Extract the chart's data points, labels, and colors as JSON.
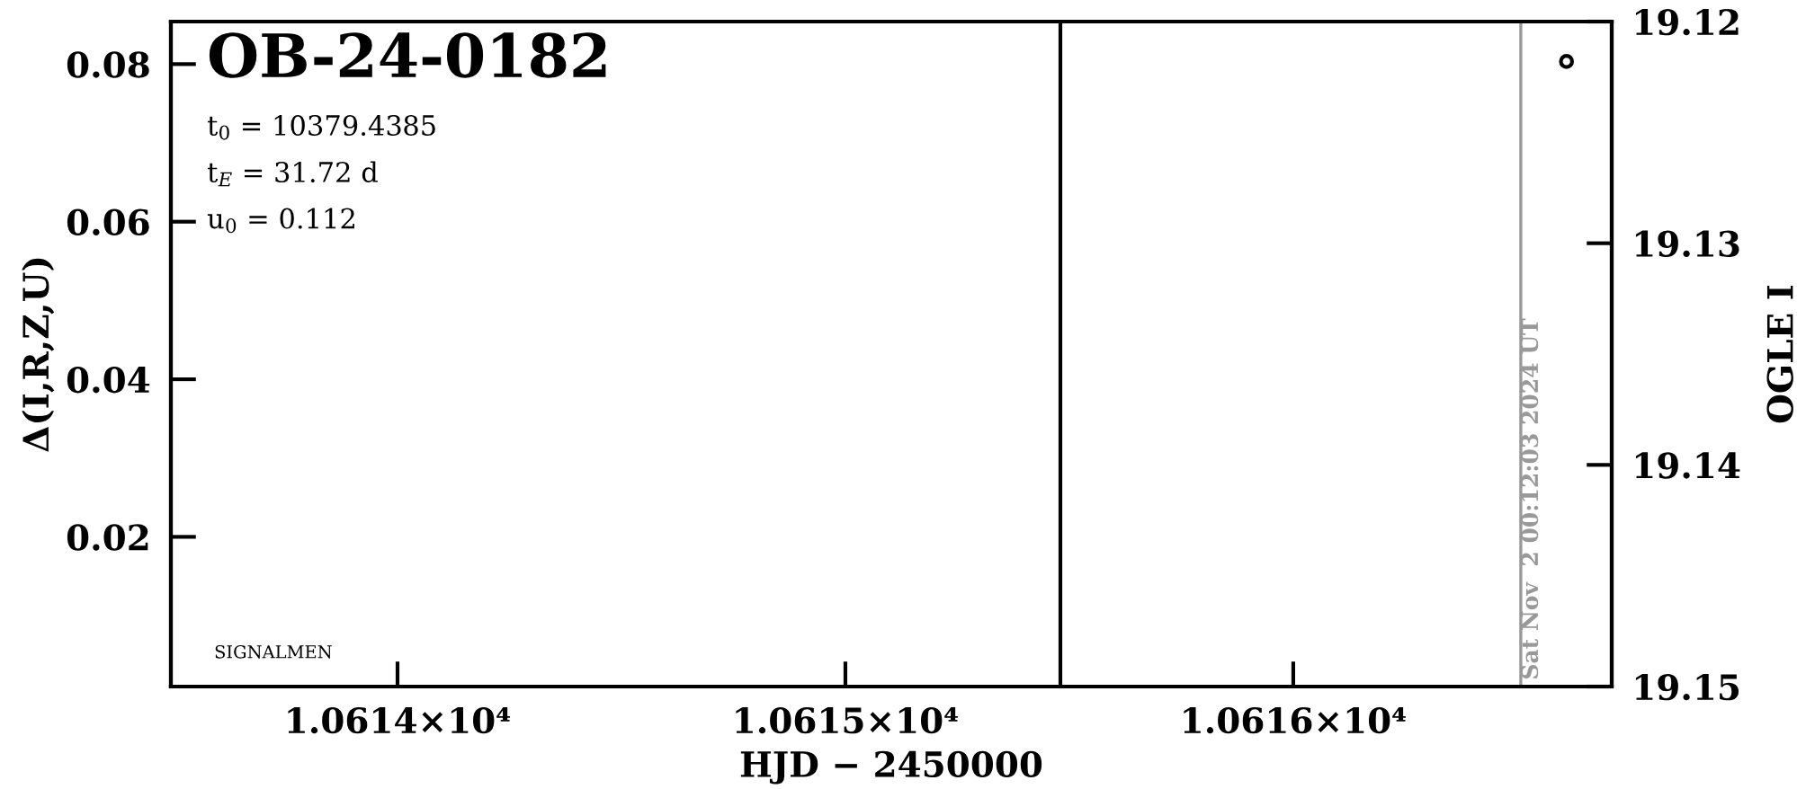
{
  "chart_data": {
    "type": "scatter",
    "title": "OB-24-0182",
    "xlabel": "HJD − 2450000",
    "ylabel": "Δ(I,R,Z,U)",
    "y2label": "OGLE I",
    "annotations": [
      "t$_{0}$ = 10379.4385",
      "t$_{E}$ = 31.72 d",
      "u$_{0}$ = 0.112",
      "SIGNALMEN",
      "Sat Nov  2 00:12:03 2024 UT"
    ],
    "xlim": [
      10613.494,
      10616.711
    ],
    "xticks": [
      {
        "value": 10614,
        "label": "1.0614×10⁴"
      },
      {
        "value": 10615,
        "label": "1.0615×10⁴"
      },
      {
        "value": 10616,
        "label": "1.0616×10⁴"
      }
    ],
    "ylim": [
      0.001,
      0.0854
    ],
    "yticks": [
      0.02,
      0.04,
      0.06,
      0.08
    ],
    "y2lim": [
      19.15,
      19.12
    ],
    "y2ticks": [
      19.12,
      19.13,
      19.14,
      19.15
    ],
    "series": [
      {
        "color": "#000000",
        "axis": "y2",
        "x": [
          10616.61
        ],
        "values": [
          19.1218
        ]
      }
    ],
    "marker": "circle",
    "grid": false,
    "legend": false,
    "ref_lines": [
      {
        "axis": "x",
        "value": 10615.48,
        "color": "#000000"
      },
      {
        "axis": "x",
        "value": 10616.508,
        "color": "#999999"
      }
    ]
  }
}
